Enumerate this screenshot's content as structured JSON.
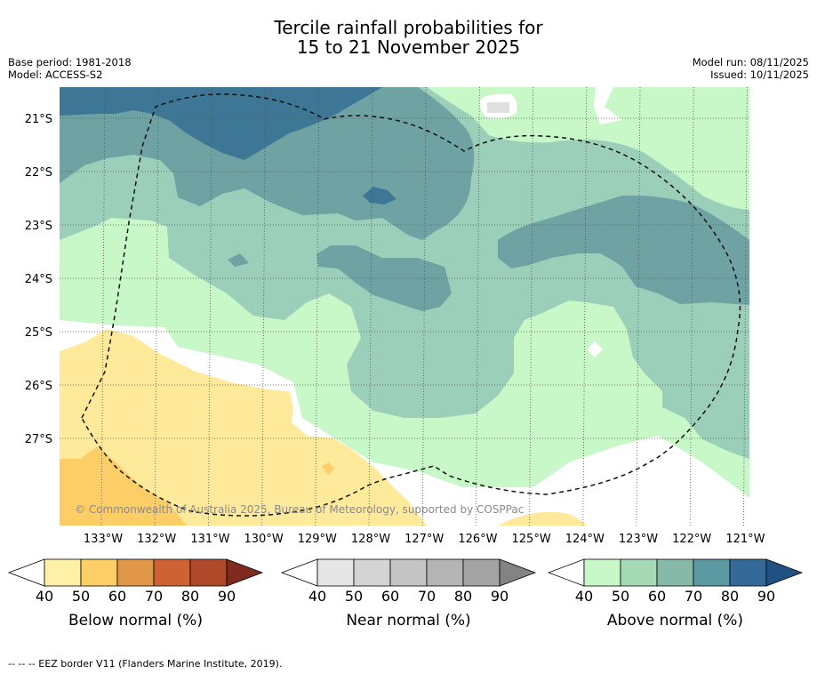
{
  "title": {
    "line1": "Tercile rainfall probabilities for",
    "line2": "15 to 21 November 2025"
  },
  "meta": {
    "base_period": "Base period: 1981-2018",
    "model": "Model: ACCESS-S2",
    "model_run": "Model run: 08/11/2025",
    "issued": "Issued: 10/11/2025"
  },
  "map": {
    "lat_labels": [
      "21°S",
      "22°S",
      "23°S",
      "24°S",
      "25°S",
      "26°S",
      "27°S"
    ],
    "lon_labels": [
      "133°W",
      "132°W",
      "131°W",
      "130°W",
      "129°W",
      "128°W",
      "127°W",
      "126°W",
      "125°W",
      "124°W",
      "123°W",
      "122°W",
      "121°W"
    ],
    "copyright": "© Commonwealth of Australia 2025, Bureau of Meteorology, supported by COSPPac"
  },
  "colorbars": [
    {
      "label": "Below normal (%)",
      "ticks": [
        "40",
        "50",
        "60",
        "70",
        "80",
        "90"
      ],
      "colors": [
        "#fff0a8",
        "#fdcd66",
        "#e09748",
        "#cd6332",
        "#b0482a",
        "#7f2a1c"
      ]
    },
    {
      "label": "Near normal (%)",
      "ticks": [
        "40",
        "50",
        "60",
        "70",
        "80",
        "90"
      ],
      "colors": [
        "#e6e6e6",
        "#d4d4d4",
        "#c4c4c4",
        "#b4b4b4",
        "#a3a3a3",
        "#838383"
      ]
    },
    {
      "label": "Above normal (%)",
      "ticks": [
        "40",
        "50",
        "60",
        "70",
        "80",
        "90"
      ],
      "colors": [
        "#c8f7c8",
        "#a6d9b6",
        "#86b9a8",
        "#5b9aa3",
        "#336a98",
        "#1f5283"
      ]
    }
  ],
  "footnote": "--  --  -- EEZ border V11 (Flanders Marine Institute, 2019).",
  "colors": {
    "above40": "#c8f7c8",
    "above50": "#9ccfb9",
    "above60": "#6ea2a3",
    "above70": "#3e7796",
    "below40": "#ffe99a",
    "below50": "#fdcd66",
    "near40": "#e0e0e0"
  }
}
